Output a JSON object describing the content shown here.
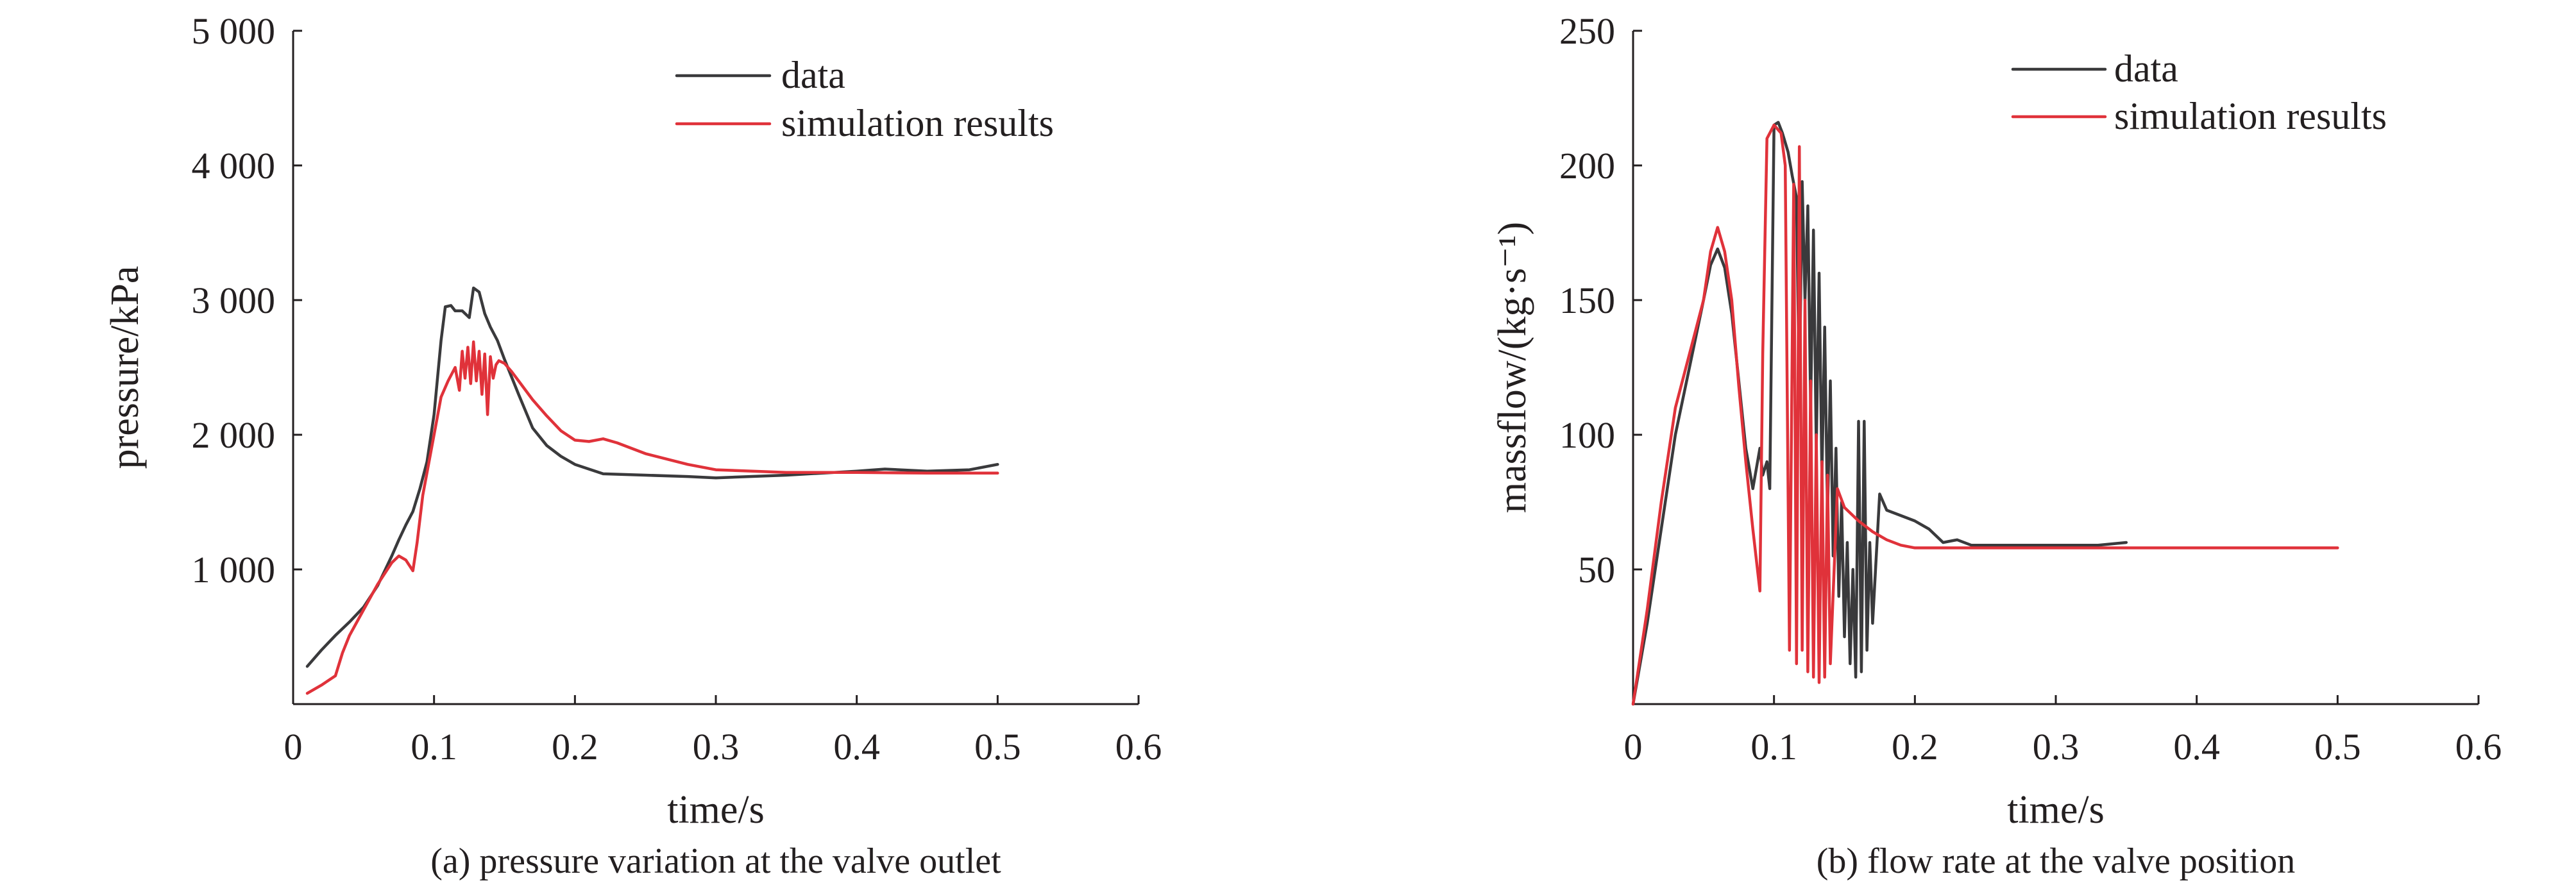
{
  "colors": {
    "data": "#3a3a3c",
    "simulation": "#e0323a",
    "axis": "#231f20"
  },
  "chart_data": [
    {
      "type": "line",
      "caption": "(a) pressure variation at the valve outlet",
      "xlabel": "time/s",
      "ylabel": "pressure/kPa",
      "xlim": [
        0,
        0.6
      ],
      "ylim": [
        0,
        5000
      ],
      "x_ticks": [
        0,
        0.1,
        0.2,
        0.3,
        0.4,
        0.5,
        0.6
      ],
      "x_tick_labels": [
        "0",
        "0.1",
        "0.2",
        "0.3",
        "0.4",
        "0.5",
        "0.6"
      ],
      "y_ticks": [
        1000,
        2000,
        3000,
        4000,
        5000
      ],
      "y_tick_labels": [
        "1 000",
        "2 000",
        "3 000",
        "4 000",
        "5 000"
      ],
      "legend_position": "top-right",
      "series": [
        {
          "name": "data",
          "color_key": "data",
          "x": [
            0.01,
            0.02,
            0.03,
            0.04,
            0.05,
            0.06,
            0.07,
            0.075,
            0.08,
            0.085,
            0.09,
            0.095,
            0.1,
            0.105,
            0.108,
            0.112,
            0.115,
            0.12,
            0.125,
            0.128,
            0.132,
            0.136,
            0.14,
            0.145,
            0.15,
            0.16,
            0.17,
            0.18,
            0.19,
            0.2,
            0.22,
            0.25,
            0.28,
            0.3,
            0.35,
            0.4,
            0.42,
            0.45,
            0.48,
            0.5
          ],
          "y": [
            280,
            400,
            510,
            610,
            720,
            880,
            1100,
            1220,
            1330,
            1430,
            1600,
            1800,
            2150,
            2700,
            2950,
            2960,
            2920,
            2920,
            2870,
            3090,
            3060,
            2900,
            2800,
            2700,
            2560,
            2300,
            2050,
            1920,
            1840,
            1780,
            1710,
            1700,
            1690,
            1680,
            1700,
            1730,
            1745,
            1730,
            1740,
            1780
          ]
        },
        {
          "name": "simulation results",
          "color_key": "simulation",
          "x": [
            0.01,
            0.02,
            0.03,
            0.035,
            0.04,
            0.05,
            0.06,
            0.07,
            0.075,
            0.08,
            0.085,
            0.088,
            0.092,
            0.1,
            0.105,
            0.11,
            0.115,
            0.118,
            0.12,
            0.122,
            0.124,
            0.126,
            0.128,
            0.13,
            0.132,
            0.134,
            0.136,
            0.138,
            0.14,
            0.142,
            0.144,
            0.146,
            0.15,
            0.155,
            0.16,
            0.17,
            0.18,
            0.19,
            0.2,
            0.21,
            0.22,
            0.23,
            0.25,
            0.28,
            0.3,
            0.35,
            0.4,
            0.45,
            0.5
          ],
          "y": [
            80,
            140,
            210,
            380,
            510,
            700,
            890,
            1050,
            1100,
            1070,
            990,
            1200,
            1550,
            2000,
            2280,
            2400,
            2500,
            2330,
            2620,
            2420,
            2650,
            2380,
            2690,
            2400,
            2620,
            2300,
            2600,
            2150,
            2580,
            2420,
            2520,
            2550,
            2530,
            2470,
            2400,
            2260,
            2140,
            2030,
            1960,
            1950,
            1970,
            1940,
            1860,
            1780,
            1740,
            1720,
            1720,
            1715,
            1715
          ]
        }
      ]
    },
    {
      "type": "line",
      "caption": "(b) flow rate at the valve position",
      "xlabel": "time/s",
      "ylabel": "massflow/(kg·s⁻¹)",
      "xlim": [
        0,
        0.6
      ],
      "ylim": [
        0,
        250
      ],
      "x_ticks": [
        0,
        0.1,
        0.2,
        0.3,
        0.4,
        0.5,
        0.6
      ],
      "x_tick_labels": [
        "0",
        "0.1",
        "0.2",
        "0.3",
        "0.4",
        "0.5",
        "0.6"
      ],
      "y_ticks": [
        50,
        100,
        150,
        200,
        250
      ],
      "y_tick_labels": [
        "50",
        "100",
        "150",
        "200",
        "250"
      ],
      "legend_position": "top-right",
      "series": [
        {
          "name": "data",
          "color_key": "data",
          "x": [
            0,
            0.01,
            0.02,
            0.03,
            0.04,
            0.05,
            0.055,
            0.06,
            0.065,
            0.07,
            0.075,
            0.08,
            0.085,
            0.09,
            0.092,
            0.095,
            0.097,
            0.1,
            0.103,
            0.106,
            0.11,
            0.113,
            0.116,
            0.118,
            0.12,
            0.122,
            0.124,
            0.126,
            0.128,
            0.13,
            0.132,
            0.134,
            0.136,
            0.138,
            0.14,
            0.142,
            0.144,
            0.146,
            0.148,
            0.15,
            0.152,
            0.154,
            0.156,
            0.158,
            0.16,
            0.162,
            0.164,
            0.166,
            0.168,
            0.17,
            0.175,
            0.18,
            0.19,
            0.2,
            0.21,
            0.22,
            0.23,
            0.24,
            0.25,
            0.28,
            0.3,
            0.33,
            0.35
          ],
          "y": [
            0,
            30,
            65,
            100,
            125,
            150,
            163,
            169,
            162,
            145,
            120,
            95,
            80,
            95,
            85,
            90,
            80,
            215,
            216,
            212,
            205,
            196,
            188,
            115,
            194,
            150,
            185,
            110,
            176,
            95,
            160,
            85,
            140,
            70,
            120,
            55,
            95,
            40,
            75,
            25,
            60,
            15,
            50,
            10,
            105,
            12,
            105,
            20,
            60,
            30,
            78,
            72,
            70,
            68,
            65,
            60,
            61,
            59,
            59,
            59,
            59,
            59,
            60
          ]
        },
        {
          "name": "simulation results",
          "color_key": "simulation",
          "x": [
            0,
            0.01,
            0.02,
            0.03,
            0.04,
            0.05,
            0.055,
            0.06,
            0.065,
            0.07,
            0.075,
            0.08,
            0.085,
            0.09,
            0.092,
            0.095,
            0.1,
            0.105,
            0.108,
            0.111,
            0.114,
            0.116,
            0.118,
            0.12,
            0.122,
            0.124,
            0.126,
            0.128,
            0.13,
            0.132,
            0.134,
            0.136,
            0.138,
            0.14,
            0.145,
            0.15,
            0.16,
            0.17,
            0.18,
            0.19,
            0.2,
            0.22,
            0.25,
            0.3,
            0.35,
            0.4,
            0.45,
            0.5
          ],
          "y": [
            0,
            35,
            75,
            110,
            130,
            150,
            168,
            177,
            168,
            150,
            118,
            90,
            65,
            42,
            130,
            210,
            215,
            212,
            200,
            20,
            193,
            15,
            207,
            20,
            150,
            12,
            120,
            10,
            100,
            8,
            90,
            10,
            85,
            15,
            80,
            73,
            68,
            64,
            61,
            59,
            58,
            58,
            58,
            58,
            58,
            58,
            58,
            58
          ]
        }
      ]
    }
  ]
}
